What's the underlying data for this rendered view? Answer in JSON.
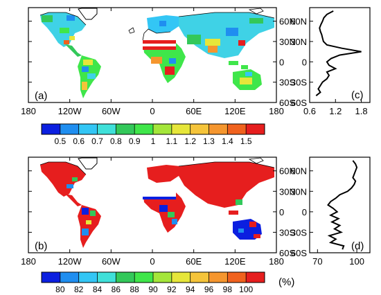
{
  "panels": {
    "a": {
      "label": "(a)"
    },
    "b": {
      "label": "(b)"
    },
    "c": {
      "label": "(c)"
    },
    "d": {
      "label": "(d)"
    }
  },
  "map_axes": {
    "lon_ticks": [
      "180",
      "120W",
      "60W",
      "0",
      "60E",
      "120E",
      "180"
    ],
    "lat_ticks": [
      "60N",
      "30N",
      "0",
      "30S",
      "60S"
    ]
  },
  "profile_axes": {
    "lat_ticks": [
      "60N",
      "30N",
      "0",
      "30S",
      "60S"
    ],
    "c_x_ticks": [
      "0.6",
      "1.2",
      "1.8"
    ],
    "d_x_ticks": [
      "70",
      "100"
    ]
  },
  "colorbar_a": {
    "labels": [
      "0.5",
      "0.6",
      "0.7",
      "0.8",
      "0.9",
      "1",
      "1.1",
      "1.2",
      "1.3",
      "1.4",
      "1.5"
    ],
    "colors": [
      "#0b1fe0",
      "#1f8ef0",
      "#33c6f5",
      "#3fe0d9",
      "#33c85a",
      "#3fe64a",
      "#a4e63a",
      "#e6e63a",
      "#f5c43a",
      "#f5962e",
      "#f0621e",
      "#e61e1e"
    ]
  },
  "colorbar_b": {
    "labels": [
      "80",
      "82",
      "84",
      "86",
      "88",
      "90",
      "92",
      "94",
      "96",
      "98",
      "100"
    ],
    "unit": "(%)",
    "colors": [
      "#0b1fe0",
      "#1f8ef0",
      "#33c6f5",
      "#3fe0d9",
      "#33c85a",
      "#3fe64a",
      "#a4e63a",
      "#e6e63a",
      "#f5c43a",
      "#f5962e",
      "#f0621e",
      "#e61e1e"
    ]
  },
  "chart_data": [
    {
      "type": "line",
      "panel": "(c)",
      "x_ticks": [
        "0.6",
        "1.2",
        "1.8"
      ],
      "y_ticks": [
        "60N",
        "30N",
        "0",
        "30S",
        "60S"
      ],
      "xlim": [
        0.6,
        2.0
      ],
      "ylim": [
        -60,
        80
      ],
      "series": [
        {
          "lat": [
            75,
            70,
            65,
            60,
            55,
            50,
            45,
            40,
            35,
            30,
            25,
            20,
            15,
            10,
            5,
            0,
            -5,
            -10,
            -15,
            -20,
            -25,
            -30,
            -35,
            -40,
            -45,
            -50
          ],
          "values": [
            1.15,
            1.0,
            0.93,
            0.9,
            0.86,
            0.83,
            0.85,
            0.88,
            0.9,
            0.92,
            1.0,
            1.35,
            1.8,
            1.3,
            1.1,
            1.0,
            1.05,
            1.2,
            1.0,
            1.05,
            1.0,
            0.9,
            0.85,
            0.8,
            0.85,
            0.75
          ]
        }
      ]
    },
    {
      "type": "line",
      "panel": "(d)",
      "x_ticks": [
        "70",
        "100"
      ],
      "y_ticks": [
        "60N",
        "30N",
        "0",
        "30S",
        "60S"
      ],
      "xlim": [
        64,
        110
      ],
      "ylim": [
        -60,
        80
      ],
      "series": [
        {
          "lat": [
            75,
            70,
            65,
            60,
            55,
            50,
            45,
            40,
            35,
            30,
            25,
            20,
            15,
            10,
            5,
            0,
            -5,
            -10,
            -15,
            -20,
            -25,
            -30,
            -35,
            -40,
            -45,
            -50,
            -55
          ],
          "values": [
            97,
            99,
            100,
            99,
            98,
            97,
            99,
            98,
            96,
            93,
            87,
            84,
            80,
            78,
            82,
            85,
            80,
            86,
            81,
            87,
            83,
            88,
            79,
            84,
            80,
            90,
            89
          ]
        }
      ]
    }
  ]
}
